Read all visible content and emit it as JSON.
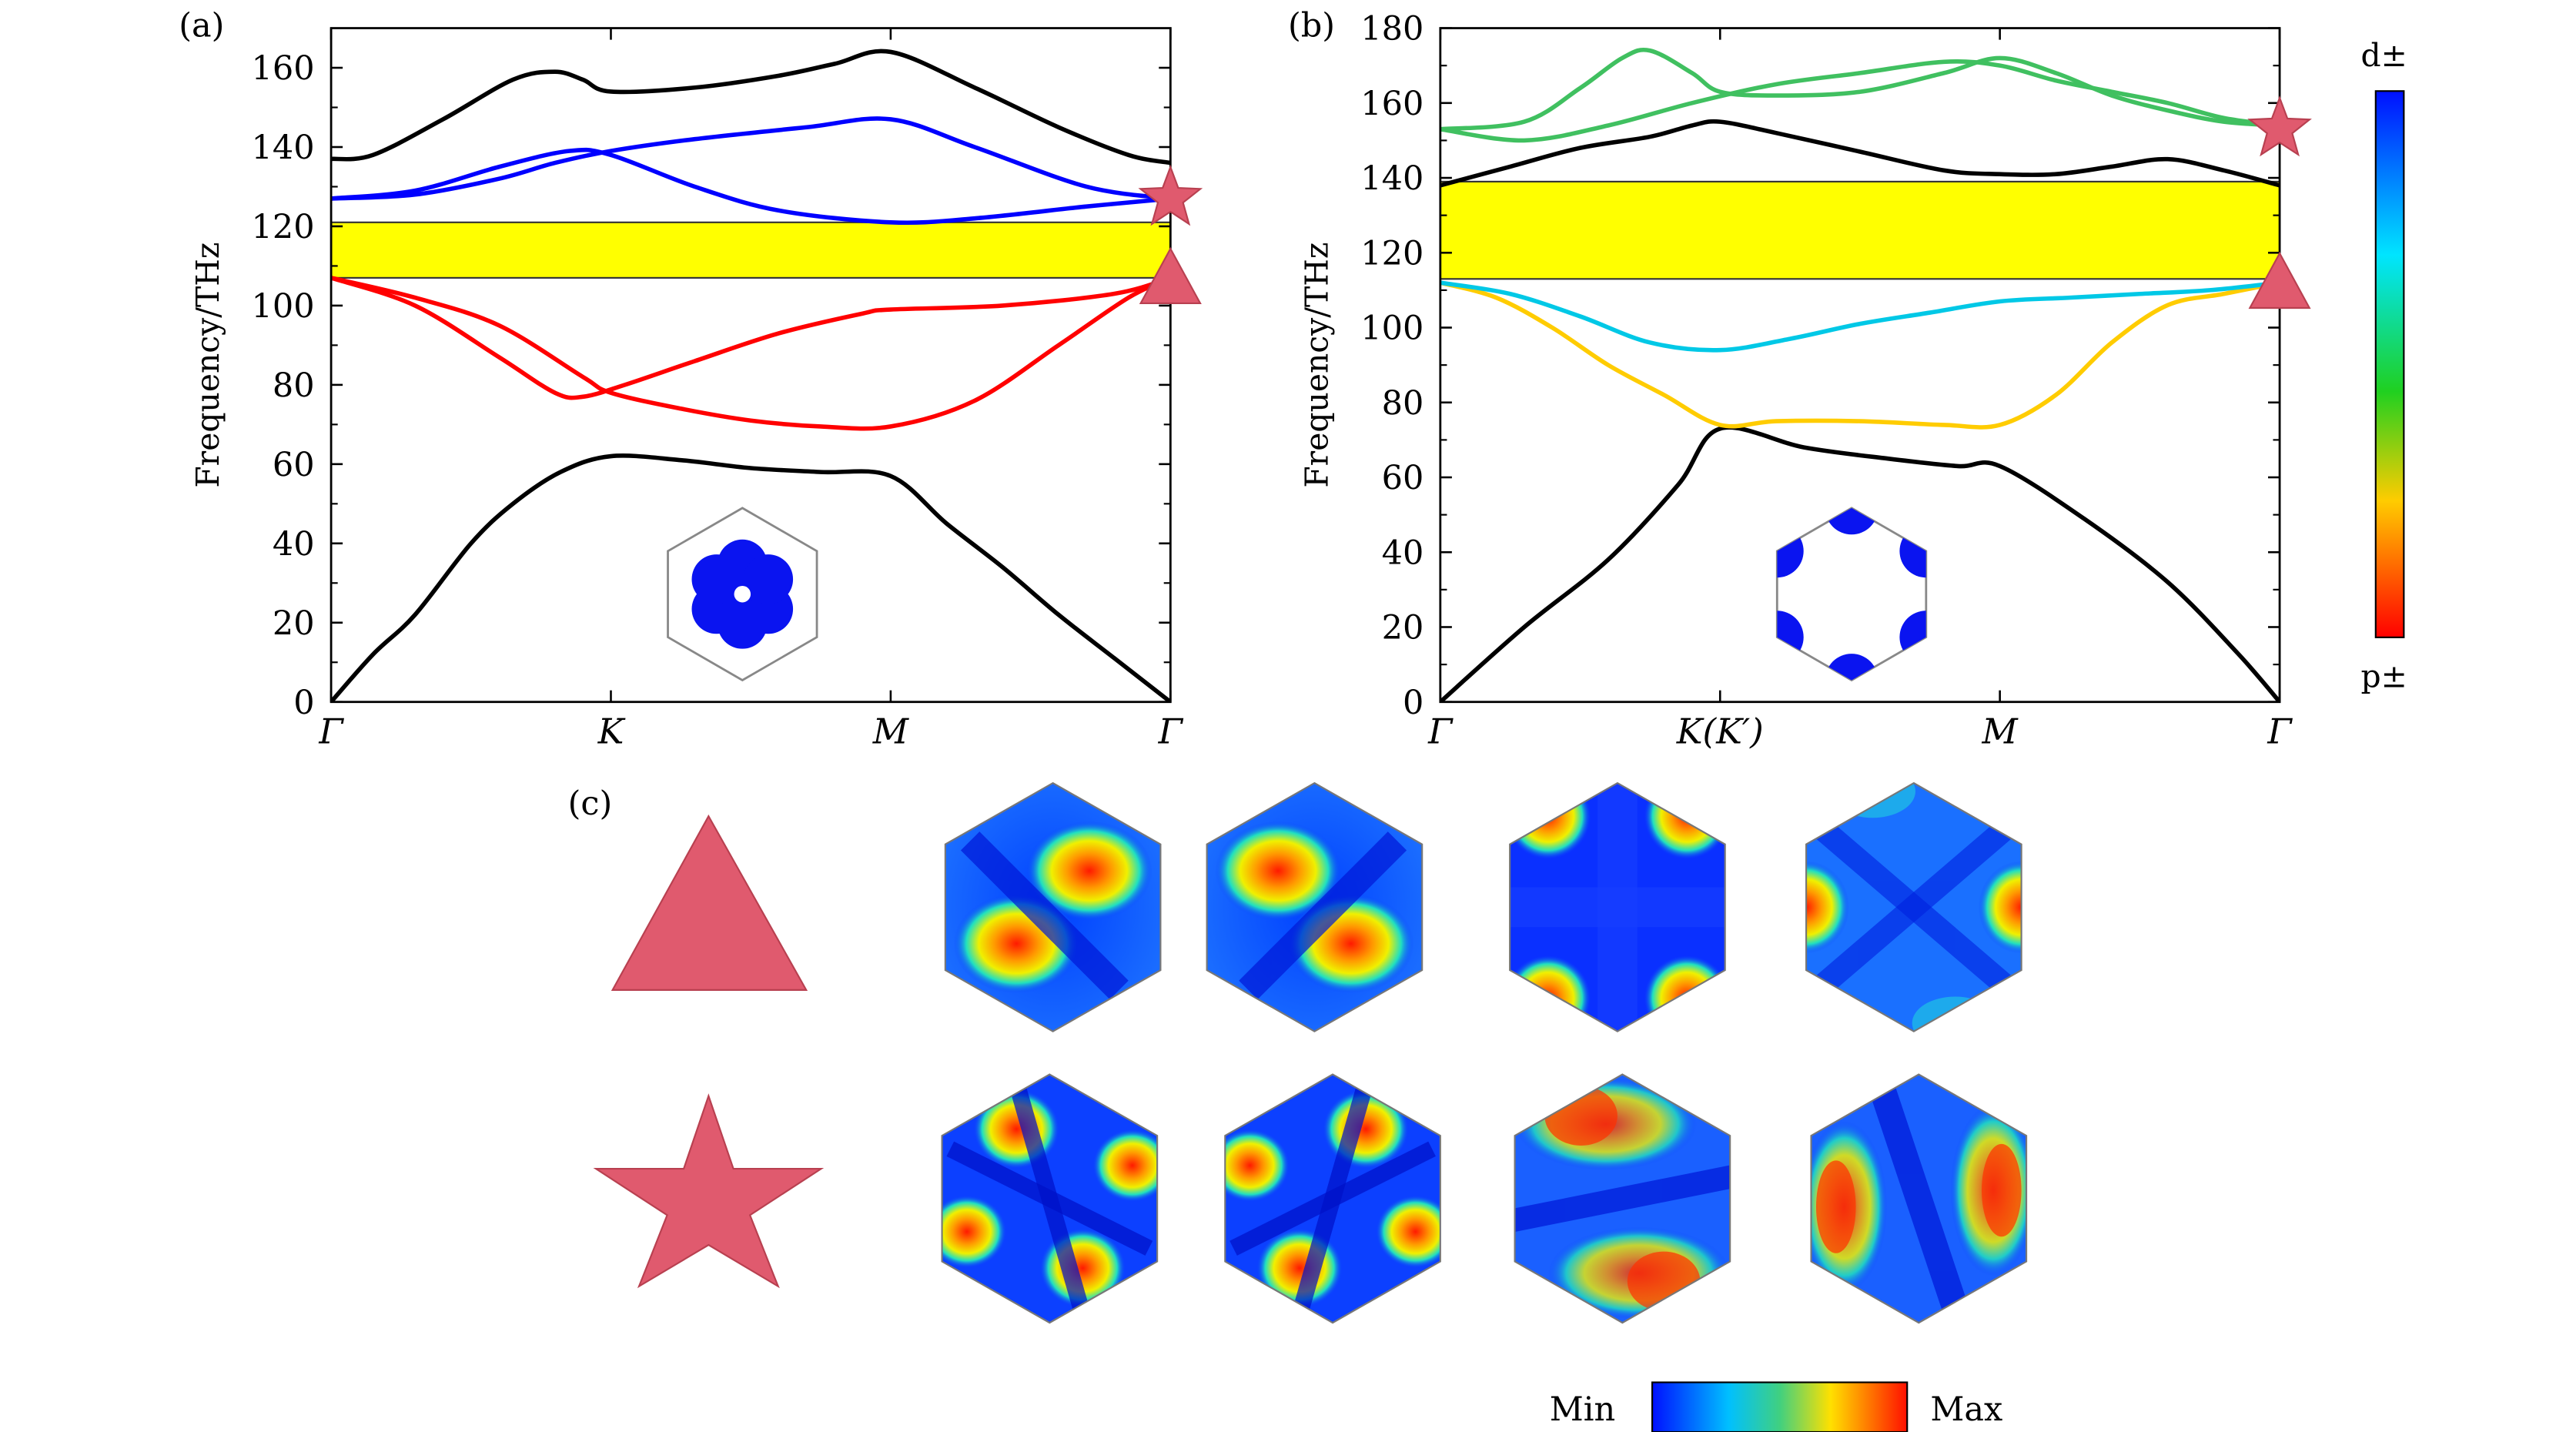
{
  "figure": {
    "panel_labels": [
      "(a)",
      "(b)",
      "(c)"
    ],
    "colorbar_band": {
      "top_label": "d±",
      "bottom_label": "p±"
    },
    "field_colorbar": {
      "min_label": "Min",
      "max_label": "Max"
    }
  },
  "chart_data": [
    {
      "type": "line",
      "panel": "(a)",
      "ylabel": "Frequency/THz",
      "ylim": [
        0,
        170
      ],
      "yticks": [
        "0",
        "20",
        "40",
        "60",
        "80",
        "100",
        "120",
        "140",
        "160"
      ],
      "xticks": [
        "Γ",
        "K",
        "M",
        "Γ"
      ],
      "band_gap": [
        107,
        121
      ],
      "series": [
        {
          "color": "#000000",
          "x": [
            0,
            0.15,
            0.3,
            0.5,
            0.65,
            0.82,
            1,
            1.25,
            1.5,
            1.75,
            2,
            2.2,
            2.4,
            2.6,
            2.8,
            3
          ],
          "values": [
            0,
            12,
            22,
            40,
            50,
            58,
            62,
            61,
            59,
            58,
            57,
            45,
            34,
            22,
            11,
            0
          ]
        },
        {
          "color": "#ff0000",
          "x": [
            0,
            0.3,
            0.6,
            0.9,
            1,
            1.25,
            1.5,
            1.75,
            2,
            2.3,
            2.6,
            2.85,
            3
          ],
          "values": [
            107,
            102,
            95,
            82,
            78,
            74,
            71,
            69.5,
            69.5,
            76,
            90,
            102,
            107
          ]
        },
        {
          "color": "#ff0000",
          "x": [
            0,
            0.3,
            0.6,
            0.8,
            0.9,
            1.05,
            1.3,
            1.6,
            1.9,
            2,
            2.4,
            2.8,
            3
          ],
          "values": [
            107,
            100,
            87,
            78,
            77,
            80,
            86,
            93,
            98,
            99,
            100,
            103,
            107
          ]
        },
        {
          "color": "#0000ff",
          "x": [
            0,
            0.3,
            0.6,
            0.8,
            1,
            1.3,
            1.7,
            2,
            2.3,
            2.7,
            3
          ],
          "values": [
            127,
            128,
            132,
            136,
            139,
            142,
            145,
            147,
            140,
            130,
            127
          ]
        },
        {
          "color": "#0000ff",
          "x": [
            0,
            0.3,
            0.6,
            0.85,
            1,
            1.3,
            1.6,
            2,
            2.3,
            2.7,
            3
          ],
          "values": [
            127,
            129,
            135,
            139,
            138,
            130,
            124,
            121,
            122,
            125,
            127
          ]
        },
        {
          "color": "#000000",
          "x": [
            0,
            0.15,
            0.4,
            0.65,
            0.8,
            0.9,
            1,
            1.3,
            1.6,
            1.8,
            2,
            2.3,
            2.6,
            2.85,
            3
          ],
          "values": [
            137,
            138,
            147,
            157,
            159,
            157,
            154,
            155,
            158,
            161,
            164,
            155,
            145,
            138,
            136
          ]
        }
      ],
      "markers": [
        {
          "shape": "star",
          "x": 3,
          "y": 127
        },
        {
          "shape": "triangle",
          "x": 3,
          "y": 106
        }
      ]
    },
    {
      "type": "line",
      "panel": "(b)",
      "ylabel": "Frequency/THz",
      "ylim": [
        0,
        180
      ],
      "yticks": [
        "0",
        "20",
        "40",
        "60",
        "80",
        "100",
        "120",
        "140",
        "160",
        "180"
      ],
      "xticks": [
        "Γ",
        "K(K′)",
        "M",
        "Γ"
      ],
      "band_gap": [
        113,
        139
      ],
      "series": [
        {
          "color": "#000000",
          "x": [
            0,
            0.3,
            0.6,
            0.85,
            1,
            1.3,
            1.6,
            1.85,
            2,
            2.3,
            2.6,
            2.85,
            3
          ],
          "values": [
            0,
            20,
            38,
            58,
            73,
            68,
            65,
            63,
            63,
            49,
            32,
            13,
            0
          ]
        },
        {
          "color": "#ffcc00",
          "x": [
            0,
            0.2,
            0.4,
            0.6,
            0.8,
            1,
            1.2,
            1.5,
            1.8,
            2,
            2.2,
            2.4,
            2.6,
            2.8,
            3
          ],
          "values": [
            112,
            108,
            100,
            90,
            82,
            74,
            75,
            75,
            74,
            74,
            82,
            96,
            106,
            109,
            112
          ]
        },
        {
          "color": "#00c8e6",
          "x": [
            0,
            0.25,
            0.5,
            0.75,
            1,
            1.25,
            1.5,
            1.75,
            2,
            2.25,
            2.5,
            2.75,
            3
          ],
          "values": [
            112,
            109,
            103,
            96,
            94,
            97,
            101,
            104,
            107,
            108,
            109,
            110,
            112
          ]
        },
        {
          "color": "#000000",
          "x": [
            0,
            0.25,
            0.5,
            0.75,
            0.9,
            1,
            1.2,
            1.5,
            1.8,
            2,
            2.2,
            2.4,
            2.6,
            2.8,
            3
          ],
          "values": [
            138,
            143,
            148,
            151,
            154,
            155,
            152,
            147,
            142,
            141,
            141,
            143,
            145,
            142,
            138
          ]
        },
        {
          "color": "#40c060",
          "x": [
            0,
            0.3,
            0.6,
            0.9,
            1.2,
            1.5,
            1.8,
            2,
            2.2,
            2.4,
            2.6,
            2.8,
            3
          ],
          "values": [
            153,
            150,
            154,
            160,
            165,
            168,
            171,
            170,
            166,
            163,
            160,
            156,
            154
          ]
        },
        {
          "color": "#40c060",
          "x": [
            0,
            0.3,
            0.5,
            0.65,
            0.75,
            0.9,
            1,
            1.2,
            1.5,
            1.8,
            2,
            2.2,
            2.4,
            2.6,
            2.8,
            3
          ],
          "values": [
            153,
            155,
            164,
            172,
            174,
            168,
            163,
            162,
            163,
            168,
            172,
            168,
            162,
            158,
            155,
            154
          ]
        }
      ],
      "markers": [
        {
          "shape": "star",
          "x": 3,
          "y": 153
        },
        {
          "shape": "triangle",
          "x": 3,
          "y": 111
        }
      ]
    }
  ]
}
